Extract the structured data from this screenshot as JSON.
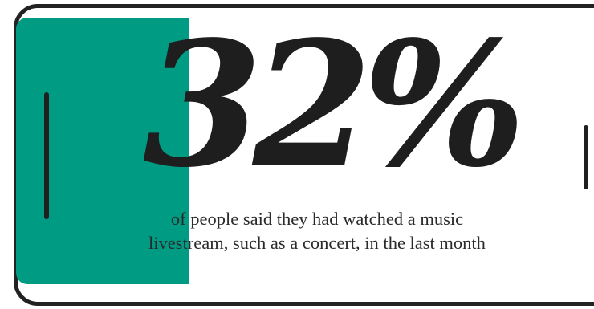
{
  "stat": {
    "value_text": "32%",
    "value": 32,
    "caption_line1": "of people said they had watched a music",
    "caption_line2": "livestream, such as a concert, in the last month"
  },
  "colors": {
    "accent": "#009b83",
    "outline": "#222222",
    "text": "#1e1e1e"
  },
  "icons": {
    "device": "phone-outline-icon"
  }
}
